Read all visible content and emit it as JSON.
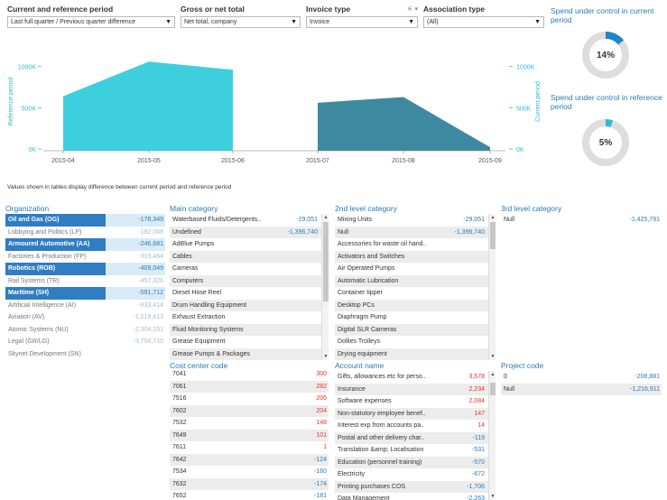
{
  "filters": [
    {
      "label": "Current and reference period",
      "value": "Last full quarter / Previous quarter difference"
    },
    {
      "label": "Gross or net total",
      "value": "Net total, company"
    },
    {
      "label": "Invoice type",
      "value": "Invoice"
    },
    {
      "label": "Association type",
      "value": "(All)"
    }
  ],
  "kpis": [
    {
      "title": "Spend under control in current period",
      "value": "14%",
      "fraction": 0.14
    },
    {
      "title": "Spend under control in reference period",
      "value": "5%",
      "fraction": 0.05
    }
  ],
  "colors": {
    "reference": "#3ecfdf",
    "current": "#3d8aa0",
    "selected": "#2f7dc3",
    "negative_red": "#e83030",
    "title_blue": "#2a7ab5"
  },
  "note": "Values shown in tables display difference between current period and reference period",
  "chart_data": [
    {
      "type": "area",
      "x": [
        "2015-04",
        "2015-05",
        "2015-06"
      ],
      "values": [
        640,
        1060,
        960
      ],
      "ylabel": "Reference period",
      "yticks": [
        "0K",
        "500K",
        "1000K"
      ],
      "ylim": [
        0,
        1150
      ]
    },
    {
      "type": "area",
      "x": [
        "2015-07",
        "2015-08",
        "2015-09"
      ],
      "values": [
        560,
        630,
        20
      ],
      "ylabel": "Current period",
      "yticks": [
        "0K",
        "500K",
        "1000K"
      ],
      "ylim": [
        0,
        1150
      ]
    }
  ],
  "organization": {
    "title": "Organization",
    "rows": [
      {
        "label": "Oil and Gas (OG)",
        "value": "-178,349",
        "state": "sel"
      },
      {
        "label": "Lobbying and Politics (LP)",
        "value": "-182,068",
        "state": "excl"
      },
      {
        "label": "Armoured Automotive (AA)",
        "value": "-246,681",
        "state": "sel"
      },
      {
        "label": "Factories & Production (FP)",
        "value": "-319,464",
        "state": "excl"
      },
      {
        "label": "Robotics (ROB)",
        "value": "-409,049",
        "state": "sel"
      },
      {
        "label": "Rail Systems (TR)",
        "value": "-457,326",
        "state": "excl"
      },
      {
        "label": "Maritime (SH)",
        "value": "-591,712",
        "state": "sel"
      },
      {
        "label": "Artificial Intelligence (AI)",
        "value": "-833,414",
        "state": "excl"
      },
      {
        "label": "Aviation (AV)",
        "value": "-1,219,413",
        "state": "excl"
      },
      {
        "label": "Atomic Systems (NU)",
        "value": "-2,304,151",
        "state": "excl"
      },
      {
        "label": "Legal (GR/LG)",
        "value": "-3,756,710",
        "state": "excl"
      },
      {
        "label": "Skynet Development (SN)",
        "value": "",
        "state": "excl"
      }
    ]
  },
  "main_category": {
    "title": "Main category",
    "rows": [
      {
        "label": "Waterbased Fluids/Detergents..",
        "value": "-29,051"
      },
      {
        "label": "Undefined",
        "value": "-1,396,740"
      },
      {
        "label": "AdBlue Pumps",
        "value": ""
      },
      {
        "label": "Cables",
        "value": ""
      },
      {
        "label": "Cameras",
        "value": ""
      },
      {
        "label": "Computers",
        "value": ""
      },
      {
        "label": "Diesel Hose Reel",
        "value": ""
      },
      {
        "label": "Drum Handling Equipment",
        "value": ""
      },
      {
        "label": "Exhaust Extraction",
        "value": ""
      },
      {
        "label": "Fluid Monitoring Systems",
        "value": ""
      },
      {
        "label": "Grease Equipment",
        "value": ""
      },
      {
        "label": "Grease Pumps & Packages",
        "value": ""
      }
    ]
  },
  "second_category": {
    "title": "2nd level category",
    "rows": [
      {
        "label": "Mixing Units",
        "value": "-29,051"
      },
      {
        "label": "Null",
        "value": "-1,396,740"
      },
      {
        "label": "Accessories for waste oil hand..",
        "value": ""
      },
      {
        "label": "Activators and Switches",
        "value": ""
      },
      {
        "label": "Air Operated Pumps",
        "value": ""
      },
      {
        "label": "Automatic Lubrication",
        "value": ""
      },
      {
        "label": "Container tipper",
        "value": ""
      },
      {
        "label": "Desktop PCs",
        "value": ""
      },
      {
        "label": "Diaphragm Pump",
        "value": ""
      },
      {
        "label": "Digital SLR Cameras",
        "value": ""
      },
      {
        "label": "Dollies Trolleys",
        "value": ""
      },
      {
        "label": "Drying equipment",
        "value": ""
      }
    ]
  },
  "third_category": {
    "title": "3rd level category",
    "rows": [
      {
        "label": "Null",
        "value": "-1,425,791"
      }
    ]
  },
  "cost_center": {
    "title": "Cost center code",
    "rows": [
      {
        "label": "7041",
        "value": "300",
        "color": "red"
      },
      {
        "label": "7061",
        "value": "282",
        "color": "red"
      },
      {
        "label": "7516",
        "value": "205",
        "color": "red"
      },
      {
        "label": "7602",
        "value": "204",
        "color": "red"
      },
      {
        "label": "7532",
        "value": "148",
        "color": "red"
      },
      {
        "label": "7649",
        "value": "101",
        "color": "red"
      },
      {
        "label": "7611",
        "value": "1",
        "color": "red"
      },
      {
        "label": "7642",
        "value": "-124",
        "color": "blue"
      },
      {
        "label": "7534",
        "value": "-160",
        "color": "blue"
      },
      {
        "label": "7632",
        "value": "-174",
        "color": "blue"
      },
      {
        "label": "7652",
        "value": "-181",
        "color": "blue"
      }
    ]
  },
  "account": {
    "title": "Account name",
    "rows": [
      {
        "label": "Gifts, allowances etc for perso..",
        "value": "3,578",
        "color": "red"
      },
      {
        "label": "Insurance",
        "value": "2,234",
        "color": "red"
      },
      {
        "label": "Software expenses",
        "value": "2,084",
        "color": "red"
      },
      {
        "label": "Non-statutory employee benef..",
        "value": "147",
        "color": "red"
      },
      {
        "label": "Interest exp from accounts pa..",
        "value": "14",
        "color": "red"
      },
      {
        "label": "Postal and other delivery char..",
        "value": "-119",
        "color": "blue"
      },
      {
        "label": "Translation &amp; Localisation",
        "value": "-531",
        "color": "blue"
      },
      {
        "label": "Education (personnel training)",
        "value": "-570",
        "color": "blue"
      },
      {
        "label": "Electricity",
        "value": "-672",
        "color": "blue"
      },
      {
        "label": "Printing purchases COS",
        "value": "-1,706",
        "color": "blue"
      },
      {
        "label": "Data Management",
        "value": "-2,263",
        "color": "blue"
      }
    ]
  },
  "project": {
    "title": "Project code",
    "rows": [
      {
        "label": "0",
        "value": "-208,881"
      },
      {
        "label": "Null",
        "value": "-1,216,911"
      }
    ]
  }
}
